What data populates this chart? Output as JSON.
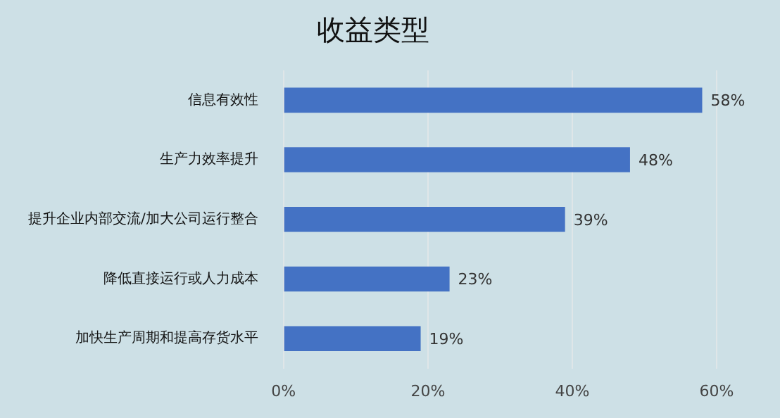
{
  "chart_data": {
    "type": "bar",
    "orientation": "horizontal",
    "title": "收益类型",
    "categories": [
      "信息有效性",
      "生产力效率提升",
      "提升企业内部交流/加大公司运行整合",
      "降低直接运行或人力成本",
      "加快生产周期和提高存货水平"
    ],
    "values": [
      58,
      48,
      39,
      23,
      19
    ],
    "color": "#4472c4",
    "value_labels": [
      "58%",
      "48%",
      "39%",
      "23%",
      "19%"
    ],
    "xlim": [
      0,
      60
    ],
    "xticks": [
      {
        "value": 0,
        "label": "0%"
      },
      {
        "value": 20,
        "label": "20%"
      },
      {
        "value": 40,
        "label": "40%"
      },
      {
        "value": 60,
        "label": "60%"
      }
    ],
    "grid": "x"
  }
}
